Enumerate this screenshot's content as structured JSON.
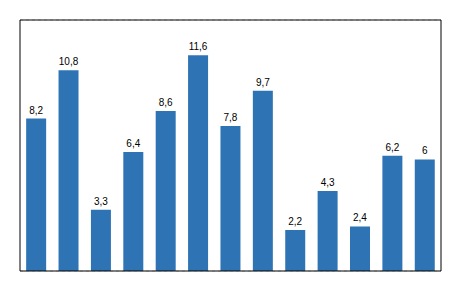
{
  "chart_data": {
    "type": "bar",
    "categories": [
      null,
      null,
      null,
      null,
      null,
      null,
      null,
      null,
      null,
      null,
      null,
      null,
      null
    ],
    "values": [
      8.2,
      10.8,
      3.3,
      6.4,
      8.6,
      11.6,
      7.8,
      9.7,
      2.2,
      4.3,
      2.4,
      6.2,
      6.0
    ],
    "value_labels": [
      "8,2",
      "10,8",
      "3,3",
      "6,4",
      "8,6",
      "11,6",
      "7,8",
      "9,7",
      "2,2",
      "4,3",
      "2,4",
      "6,2",
      "6"
    ],
    "color": "#2E74B5",
    "ylim": [
      0,
      13.5
    ],
    "yticks": [
      4,
      8
    ],
    "grid": true,
    "tick_labels": false,
    "data_labels": true
  }
}
